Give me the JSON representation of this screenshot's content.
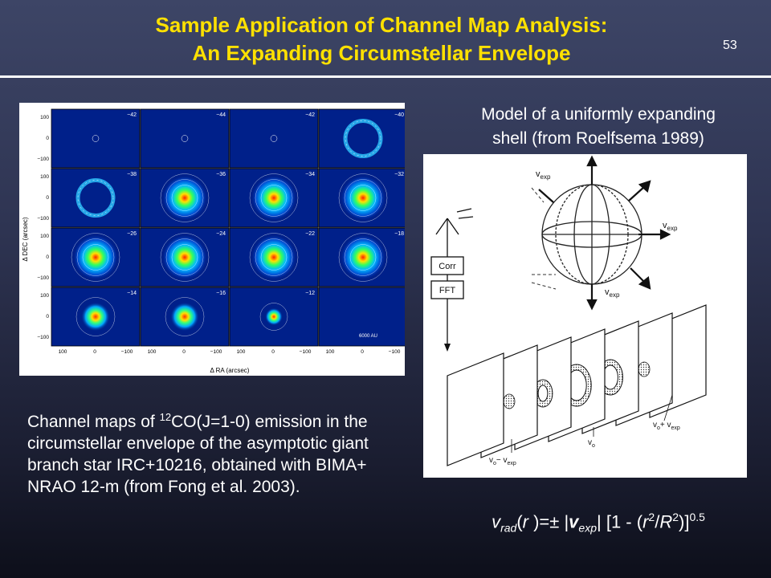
{
  "slide": {
    "title_line1": "Sample Application of Channel Map Analysis:",
    "title_line2": "An Expanding Circumstellar Envelope",
    "number": "53"
  },
  "channel_maps": {
    "ylabel": "Δ DEC (arcsec)",
    "xlabel": "Δ RA (arcsec)",
    "scale_label": "6000 AU",
    "y_ticks": [
      "100",
      "0",
      "−100"
    ],
    "x_ticks": [
      "100",
      "0",
      "−100"
    ],
    "panels": [
      {
        "velocity": "−42"
      },
      {
        "velocity": "−44"
      },
      {
        "velocity": "−42"
      },
      {
        "velocity": "−40"
      },
      {
        "velocity": "−38"
      },
      {
        "velocity": "−36"
      },
      {
        "velocity": "−34"
      },
      {
        "velocity": "−32"
      },
      {
        "velocity": "−26"
      },
      {
        "velocity": "−24"
      },
      {
        "velocity": "−22"
      },
      {
        "velocity": "−18"
      },
      {
        "velocity": "−14"
      },
      {
        "velocity": "−16"
      },
      {
        "velocity": "−12"
      },
      {
        "velocity": ""
      }
    ],
    "caption_pre": "Channel maps of ",
    "caption_sup": "12",
    "caption_post": "CO(J=1-0) emission in the circumstellar envelope of the asymptotic giant branch star IRC+10216, obtained with BIMA+ NRAO 12-m (from Fong et al. 2003)."
  },
  "model": {
    "caption_line1": "Model of a uniformly expanding",
    "caption_line2": "shell (from Roelfsema 1989)",
    "labels": {
      "vexp_top": "v",
      "vexp_right": "v",
      "vexp_bottom": "v",
      "exp_sub": "exp",
      "corr": "Corr",
      "fft": "FFT",
      "v0": "v",
      "v0_sub": "o",
      "v0_minus": "v",
      "v0_minus_rest": "− v",
      "v0_plus": "v",
      "v0_plus_rest": "+ v"
    }
  },
  "formula": {
    "v": "v",
    "rad": "rad",
    "r_open": "(",
    "r": "r",
    "eq": " )=± ",
    "bar": "|",
    "vexp": "v",
    "exp": "exp",
    "bracket": " [1 - (",
    "r2": "r",
    "two1": "2",
    "slash": "/",
    "R": "R",
    "two2": "2",
    "close": ")]",
    "power": "0.5"
  },
  "colors": {
    "title": "#ffe100",
    "background_top": "#3d4566",
    "background_bottom": "#0d0f1a"
  }
}
